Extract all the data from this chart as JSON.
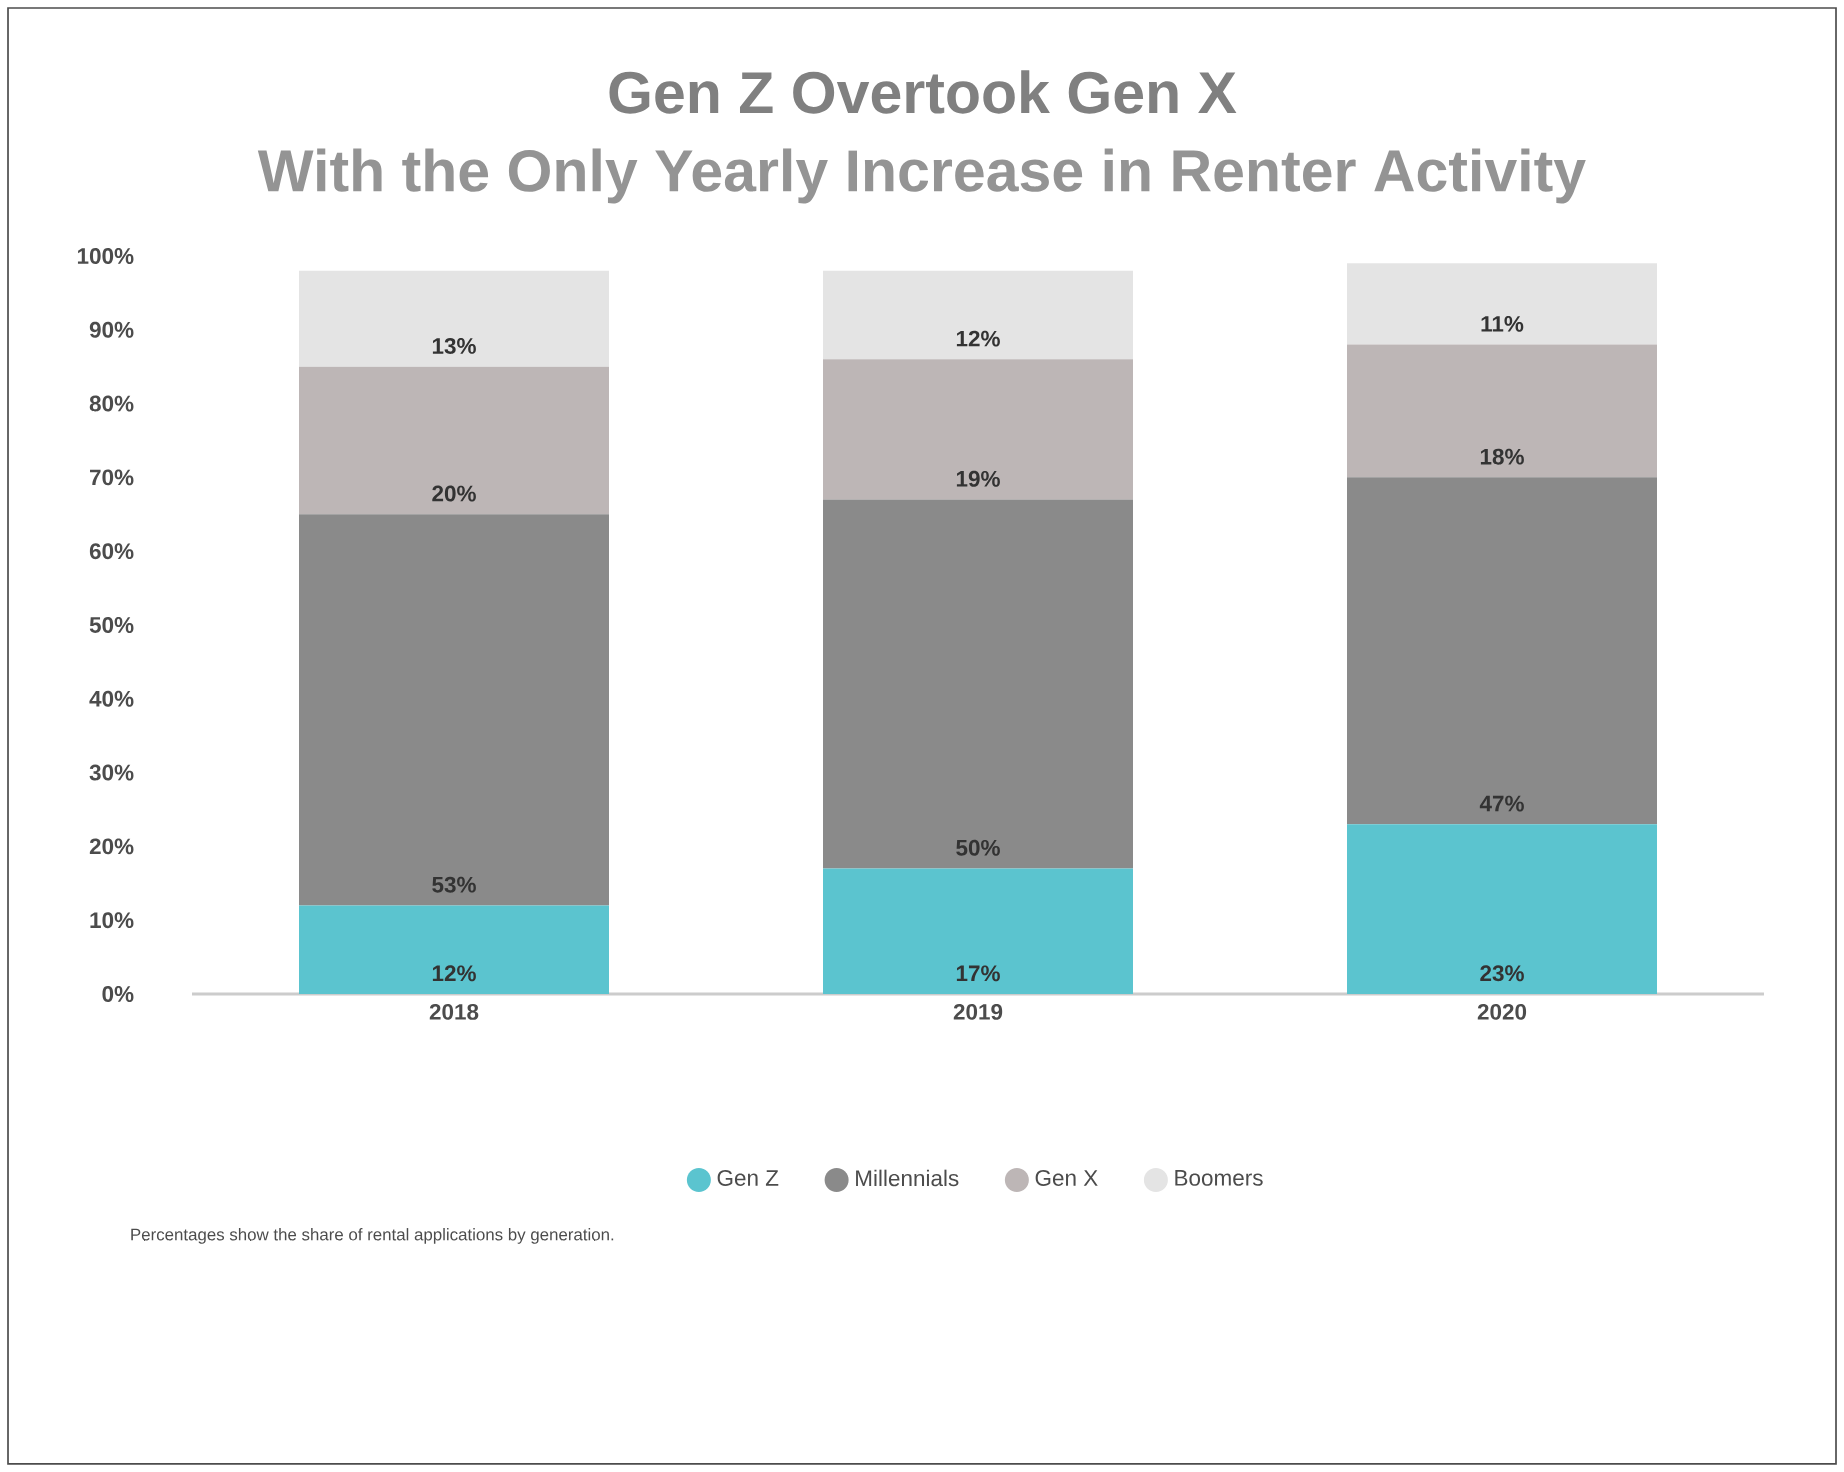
{
  "chart_data": {
    "type": "bar",
    "stacked": true,
    "title": "Gen Z Overtook Gen X",
    "subtitle": "With the Only Yearly Increase in Renter Activity",
    "categories": [
      "2018",
      "2019",
      "2020"
    ],
    "series": [
      {
        "name": "Gen Z",
        "color": "#5bc4cf",
        "values": [
          12,
          17,
          23
        ],
        "value_labels": [
          "12%",
          "17%",
          "23%"
        ]
      },
      {
        "name": "Millennials",
        "color": "#8a8a8a",
        "values": [
          53,
          50,
          47
        ],
        "value_labels": [
          "53%",
          "50%",
          "47%"
        ]
      },
      {
        "name": "Gen X",
        "color": "#bdb6b6",
        "values": [
          20,
          19,
          18
        ],
        "value_labels": [
          "20%",
          "19%",
          "18%"
        ]
      },
      {
        "name": "Boomers",
        "color": "#e4e4e4",
        "values": [
          13,
          12,
          11
        ],
        "value_labels": [
          "13%",
          "12%",
          "11%"
        ]
      }
    ],
    "ylim": [
      0,
      100
    ],
    "yticks": [
      {
        "value": 0,
        "label": "0%"
      },
      {
        "value": 10,
        "label": "10%"
      },
      {
        "value": 20,
        "label": "20%"
      },
      {
        "value": 30,
        "label": "30%"
      },
      {
        "value": 40,
        "label": "40%"
      },
      {
        "value": 50,
        "label": "50%"
      },
      {
        "value": 60,
        "label": "60%"
      },
      {
        "value": 70,
        "label": "70%"
      },
      {
        "value": 80,
        "label": "80%"
      },
      {
        "value": 90,
        "label": "90%"
      },
      {
        "value": 100,
        "label": "100%"
      }
    ],
    "grid": false,
    "legend": "bottom",
    "annotations": [
      "Percentages show the share of rental applications by generation."
    ]
  }
}
